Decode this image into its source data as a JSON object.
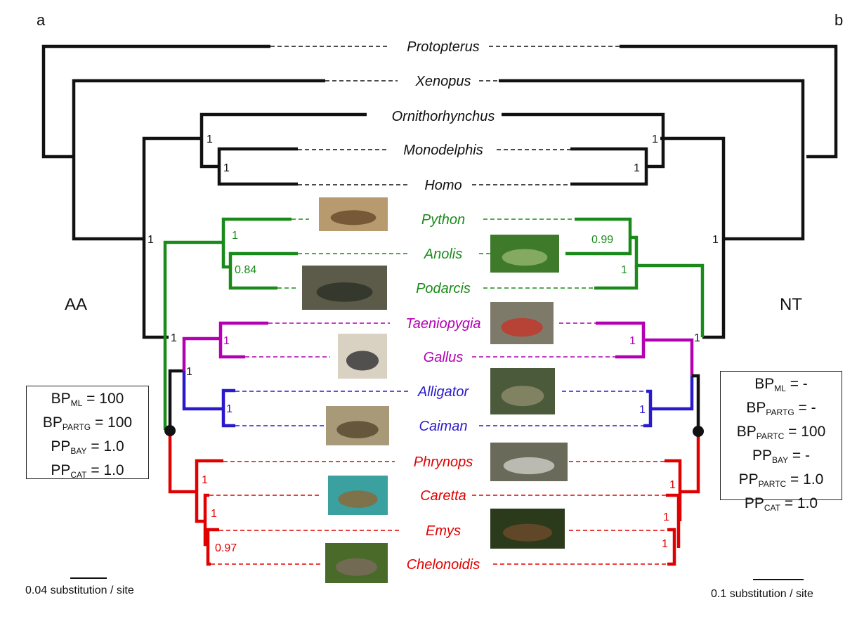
{
  "panels": {
    "left": "a",
    "right": "b"
  },
  "sides": {
    "left": "AA",
    "right": "NT"
  },
  "taxa": [
    {
      "key": "protopterus",
      "name": "Protopterus",
      "color": "#111111"
    },
    {
      "key": "xenopus",
      "name": "Xenopus",
      "color": "#111111"
    },
    {
      "key": "ornithorhynchus",
      "name": "Ornithorhynchus",
      "color": "#111111"
    },
    {
      "key": "monodelphis",
      "name": "Monodelphis",
      "color": "#111111"
    },
    {
      "key": "homo",
      "name": "Homo",
      "color": "#111111"
    },
    {
      "key": "python",
      "name": "Python",
      "color": "#1a8a1a"
    },
    {
      "key": "anolis",
      "name": "Anolis",
      "color": "#1a8a1a"
    },
    {
      "key": "podarcis",
      "name": "Podarcis",
      "color": "#1a8a1a"
    },
    {
      "key": "taeniopygia",
      "name": "Taeniopygia",
      "color": "#b300b3"
    },
    {
      "key": "gallus",
      "name": "Gallus",
      "color": "#b300b3"
    },
    {
      "key": "alligator",
      "name": "Alligator",
      "color": "#2a1acc"
    },
    {
      "key": "caiman",
      "name": "Caiman",
      "color": "#2a1acc"
    },
    {
      "key": "phrynops",
      "name": "Phrynops",
      "color": "#e00000"
    },
    {
      "key": "caretta",
      "name": "Caretta",
      "color": "#e00000"
    },
    {
      "key": "emys",
      "name": "Emys",
      "color": "#e00000"
    },
    {
      "key": "chelonoidis",
      "name": "Chelonoidis",
      "color": "#e00000"
    }
  ],
  "support_left": [
    {
      "id": "mammals",
      "value": "1"
    },
    {
      "id": "monodelphis_homo",
      "value": "1"
    },
    {
      "id": "amniota",
      "value": "1"
    },
    {
      "id": "squamates",
      "value": "1"
    },
    {
      "id": "anolis_podarcis",
      "value": "0.84"
    },
    {
      "id": "archosaurs_turtles",
      "value": "1"
    },
    {
      "id": "archosaurs",
      "value": "1"
    },
    {
      "id": "birds",
      "value": "1"
    },
    {
      "id": "crocodiles",
      "value": "1"
    },
    {
      "id": "turtles",
      "value": "1"
    },
    {
      "id": "caretta_emys_chelonoidis",
      "value": "1"
    },
    {
      "id": "emys_chelonoidis",
      "value": "0.97"
    }
  ],
  "support_right": [
    {
      "id": "mammals",
      "value": "1"
    },
    {
      "id": "monodelphis_homo",
      "value": "1"
    },
    {
      "id": "amniota",
      "value": "1"
    },
    {
      "id": "python_anolis",
      "value": "0.99"
    },
    {
      "id": "squamates",
      "value": "1"
    },
    {
      "id": "archosaurs_turtles",
      "value": "1"
    },
    {
      "id": "birds",
      "value": "1"
    },
    {
      "id": "crocodiles",
      "value": "1"
    },
    {
      "id": "turtles",
      "value": "1"
    },
    {
      "id": "emys_chelonoidis",
      "value": "1"
    },
    {
      "id": "caretta_emys_chelonoidis",
      "value": "1"
    }
  ],
  "box_left": {
    "rows": [
      {
        "base": "BP",
        "sub": "ML",
        "value": " = 100"
      },
      {
        "base": "BP",
        "sub": "PARTG",
        "value": " = 100"
      },
      {
        "base": "PP",
        "sub": "BAY",
        "value": " = 1.0"
      },
      {
        "base": "PP",
        "sub": "CAT",
        "value": " = 1.0"
      }
    ]
  },
  "box_right": {
    "rows": [
      {
        "base": "BP",
        "sub": "ML",
        "value": " = -"
      },
      {
        "base": "BP",
        "sub": "PARTG",
        "value": " = -"
      },
      {
        "base": "BP",
        "sub": "PARTC",
        "value": " = 100"
      },
      {
        "base": "PP",
        "sub": "BAY",
        "value": " = -"
      },
      {
        "base": "PP",
        "sub": "PARTC",
        "value": " = 1.0"
      },
      {
        "base": "PP",
        "sub": "CAT",
        "value": " = 1.0"
      }
    ]
  },
  "scales": {
    "left": "0.04 substitution / site",
    "right": "0.1 substitution / site"
  },
  "photos": [
    "python",
    "anolis",
    "podarcis",
    "taeniopygia",
    "gallus",
    "alligator",
    "caiman",
    "phrynops",
    "caretta",
    "emys",
    "chelonoidis"
  ],
  "colors": {
    "black": "#111111",
    "green": "#1a8a1a",
    "magenta": "#b300b3",
    "blue": "#2a1acc",
    "red": "#e00000"
  }
}
